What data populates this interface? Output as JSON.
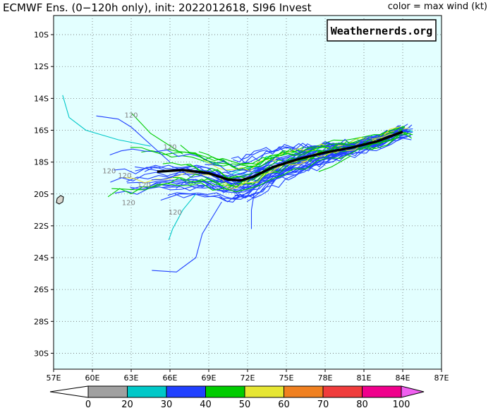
{
  "title": "ECMWF Ens. (0−120h only), init: 2022012618, SI96 Invest",
  "color_note": "color = max wind (kt)",
  "watermark": "Weathernerds.org",
  "colors": {
    "ocean": "#e3ffff",
    "land": "#d9d7cf",
    "mean_track": "#000000",
    "grid": "#6f6f6f"
  },
  "map": {
    "lon_range": [
      57,
      87
    ],
    "lat_range": [
      -31,
      -8.8
    ],
    "lon_ticks": [
      "57E",
      "60E",
      "63E",
      "66E",
      "69E",
      "72E",
      "75E",
      "78E",
      "81E",
      "84E",
      "87E"
    ],
    "lat_ticks": [
      "10S",
      "12S",
      "14S",
      "16S",
      "18S",
      "20S",
      "22S",
      "24S",
      "26S",
      "28S",
      "30S"
    ]
  },
  "colorbar": {
    "labels": [
      "0",
      "20",
      "30",
      "40",
      "50",
      "60",
      "70",
      "80",
      "100"
    ],
    "colors": [
      "#ffffff",
      "#a0a0a0",
      "#00c8c8",
      "#2040ff",
      "#00cc00",
      "#e6e633",
      "#f08020",
      "#f03c3c",
      "#f0008c",
      "#f060f0"
    ]
  },
  "hour_labels": [
    "120",
    "120",
    "120",
    "120",
    "120",
    "120",
    "120"
  ],
  "mean_track": [
    [
      65.0,
      -18.6
    ],
    [
      67.0,
      -18.5
    ],
    [
      69.0,
      -18.7
    ],
    [
      70.5,
      -19.1
    ],
    [
      71.5,
      -19.15
    ],
    [
      72.5,
      -18.9
    ],
    [
      74.0,
      -18.3
    ],
    [
      76.0,
      -17.8
    ],
    [
      78.0,
      -17.4
    ],
    [
      80.0,
      -17.1
    ],
    [
      82.0,
      -16.7
    ],
    [
      84.0,
      -16.1
    ]
  ]
}
